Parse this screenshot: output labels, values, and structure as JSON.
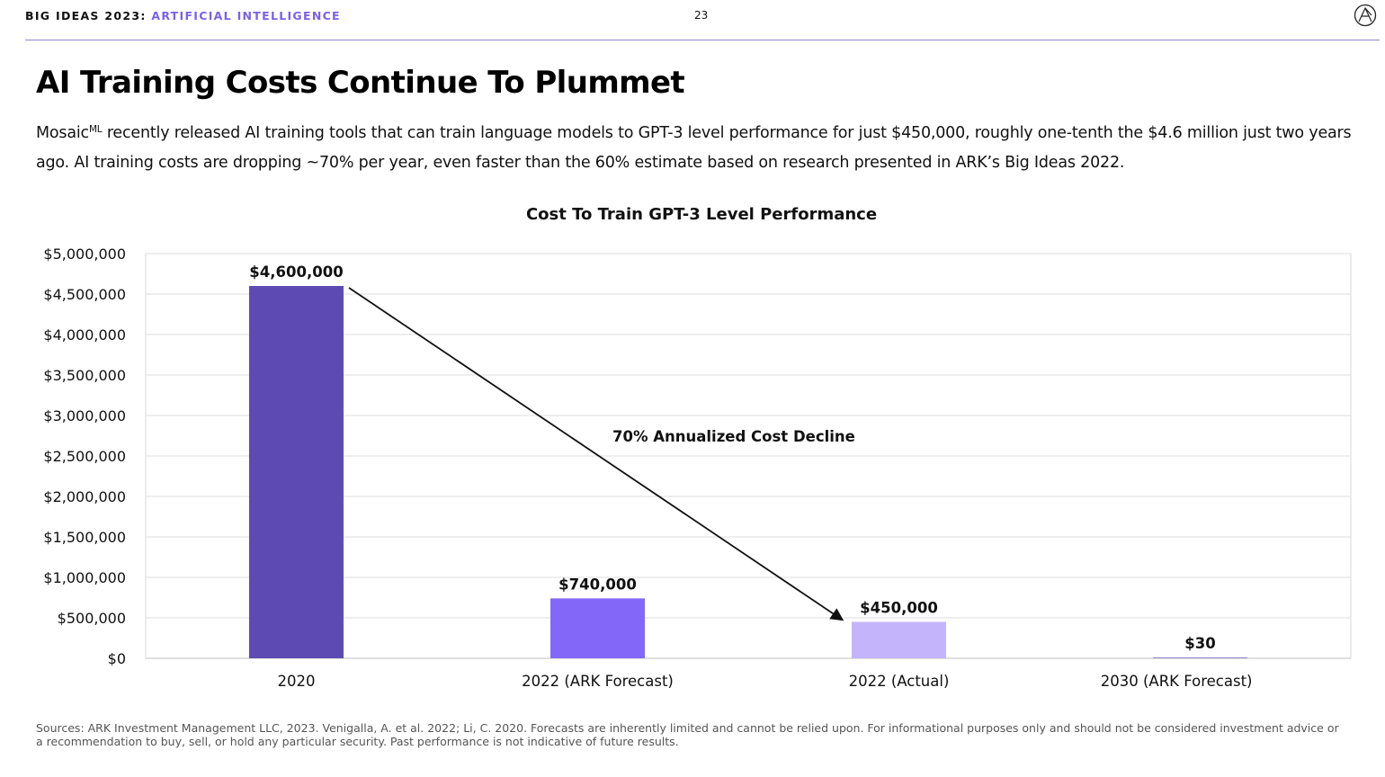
{
  "header": {
    "brand": "BIG IDEAS 2023:",
    "section": "ARTIFICIAL INTELLIGENCE",
    "page_number": "23",
    "logo_icon": "ark-logo-icon"
  },
  "slide": {
    "title": "AI Training Costs Continue To Plummet",
    "intro_before": "Mosaic",
    "intro_super": "ML",
    "intro_after": " recently released AI training tools that can train language models to GPT-3 level performance for just $450,000, roughly one-tenth the $4.6 million just two years ago. AI training costs are dropping ~70% per year, even faster than the 60% estimate based on research presented in ARK’s Big Ideas 2022.",
    "footer": "Sources: ARK Investment Management LLC, 2023. Venigalla, A. et al. 2022; Li, C. 2020. Forecasts are inherently limited and cannot be relied upon. For informational purposes only and should not be considered investment advice or a recommendation to buy, sell, or hold any particular security. Past performance is not indicative of future results."
  },
  "chart_data": {
    "type": "bar",
    "title": "Cost To Train GPT-3 Level Performance",
    "xlabel": "",
    "ylabel": "",
    "categories": [
      "2020",
      "2022 (ARK Forecast)",
      "2022 (Actual)",
      "2030 (ARK Forecast)"
    ],
    "values": [
      4600000,
      740000,
      450000,
      30
    ],
    "value_labels": [
      "$4,600,000",
      "$740,000",
      "$450,000",
      "$30"
    ],
    "bar_colors": [
      "#5e4ab3",
      "#8367f8",
      "#c3b4fb",
      "#8f86cf"
    ],
    "ylim": [
      0,
      5000000
    ],
    "yticks": [
      0,
      500000,
      1000000,
      1500000,
      2000000,
      2500000,
      3000000,
      3500000,
      4000000,
      4500000,
      5000000
    ],
    "ytick_labels": [
      "$0",
      "$500,000",
      "$1,000,000",
      "$1,500,000",
      "$2,000,000",
      "$2,500,000",
      "$3,000,000",
      "$3,500,000",
      "$4,000,000",
      "$4,500,000",
      "$5,000,000"
    ],
    "grid": true,
    "annotation": {
      "text": "70% Annualized Cost Decline",
      "arrow_from_category": "2020",
      "arrow_to_category": "2022 (Actual)"
    }
  }
}
